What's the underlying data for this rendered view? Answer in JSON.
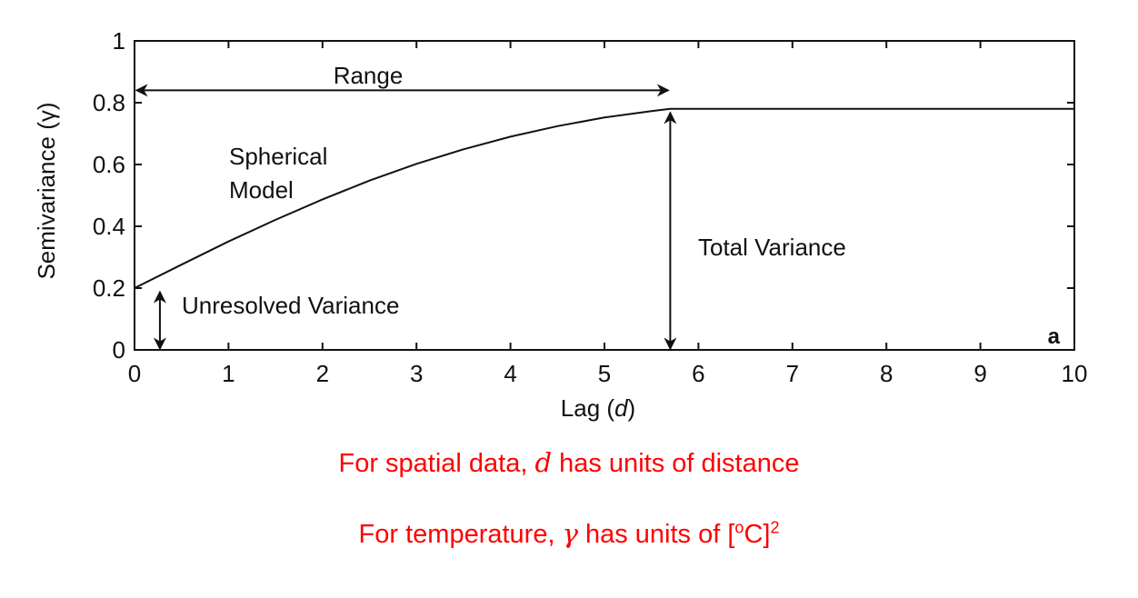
{
  "chart_data": {
    "type": "line",
    "xlabel_text": "Lag (",
    "xlabel_var": "d",
    "xlabel_close": ")",
    "ylabel": "Semivariance (γ)",
    "xlim": [
      0,
      10
    ],
    "ylim": [
      0,
      1
    ],
    "xticks": [
      "0",
      "1",
      "2",
      "3",
      "4",
      "5",
      "6",
      "7",
      "8",
      "9",
      "10"
    ],
    "yticks": [
      "0",
      "0.2",
      "0.4",
      "0.6",
      "0.8",
      "1"
    ],
    "grid": false,
    "model": {
      "nugget": 0.2,
      "sill": 0.78,
      "range": 5.7
    },
    "series": [
      {
        "x": [
          0,
          0.5,
          1,
          1.5,
          2,
          2.5,
          3,
          3.5,
          4,
          4.5,
          5,
          5.5,
          5.7,
          6,
          7,
          8,
          9,
          10
        ],
        "y": [
          0.2,
          0.276,
          0.351,
          0.421,
          0.487,
          0.548,
          0.602,
          0.649,
          0.69,
          0.724,
          0.752,
          0.773,
          0.78,
          0.78,
          0.78,
          0.78,
          0.78,
          0.78
        ]
      }
    ],
    "annotations": {
      "range": "Range",
      "model_line1": "Spherical",
      "model_line2": "Model",
      "total_variance": "Total Variance",
      "unresolved_variance": "Unresolved Variance",
      "panel_label": "a"
    }
  },
  "notes": {
    "line1_before": "For spatial data, ",
    "line1_var": "d",
    "line1_after": " has units of distance",
    "line2_before": "For temperature, ",
    "line2_var": "γ",
    "line2_after": " has units of  [",
    "line2_sup1": "o",
    "line2_mid": "C]",
    "line2_sup2": "2"
  }
}
